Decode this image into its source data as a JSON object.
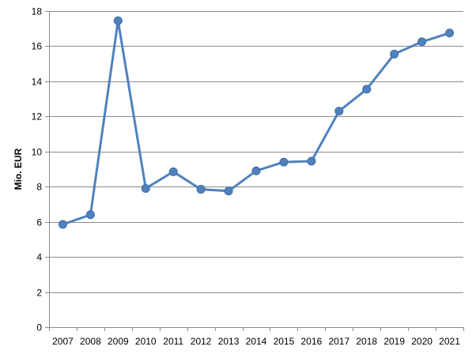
{
  "chart_data": {
    "type": "line",
    "title": "",
    "xlabel": "",
    "ylabel": "Mio. EUR",
    "ylim": [
      0,
      18
    ],
    "ytick_step": 2,
    "grid": true,
    "legend": "none",
    "series_color": "#4F81BD",
    "grid_color": "#8C8C8C",
    "categories": [
      "2007",
      "2008",
      "2009",
      "2010",
      "2011",
      "2012",
      "2013",
      "2014",
      "2015",
      "2016",
      "2017",
      "2018",
      "2019",
      "2020",
      "2021"
    ],
    "series": [
      {
        "values": [
          5.85,
          6.4,
          17.45,
          7.9,
          8.85,
          7.85,
          7.75,
          8.9,
          9.4,
          9.45,
          12.3,
          13.55,
          15.55,
          16.25,
          16.75
        ]
      }
    ]
  }
}
